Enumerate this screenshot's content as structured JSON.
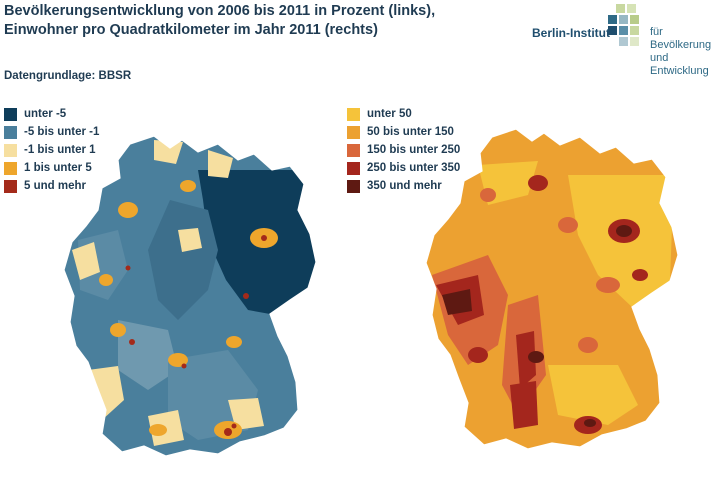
{
  "title_lines": [
    "Bevölkerungsentwicklung von 2006 bis 2011 in Prozent (links),",
    "Einwohner pro Quadratkilometer im Jahr 2011 (rechts)"
  ],
  "source": "Datengrundlage: BBSR",
  "logo": {
    "name": "Berlin-Institut",
    "subtitle_line1": "für Bevölkerung",
    "subtitle_line2": "und Entwicklung"
  },
  "legend_left": [
    {
      "label": "unter -5",
      "color": "#0e3d5a"
    },
    {
      "label": "-5 bis unter -1",
      "color": "#4a7f9c"
    },
    {
      "label": "-1 bis unter 1",
      "color": "#f6dfa0"
    },
    {
      "label": "1 bis unter 5",
      "color": "#eea62c"
    },
    {
      "label": "5 und mehr",
      "color": "#a42a1a"
    }
  ],
  "legend_right": [
    {
      "label": "unter 50",
      "color": "#f5c33a"
    },
    {
      "label": "50 bis unter 150",
      "color": "#eca131"
    },
    {
      "label": "150 bis unter 250",
      "color": "#d9673b"
    },
    {
      "label": "250 bis unter 350",
      "color": "#a4261d"
    },
    {
      "label": "350 und mehr",
      "color": "#5e1912"
    }
  ]
}
